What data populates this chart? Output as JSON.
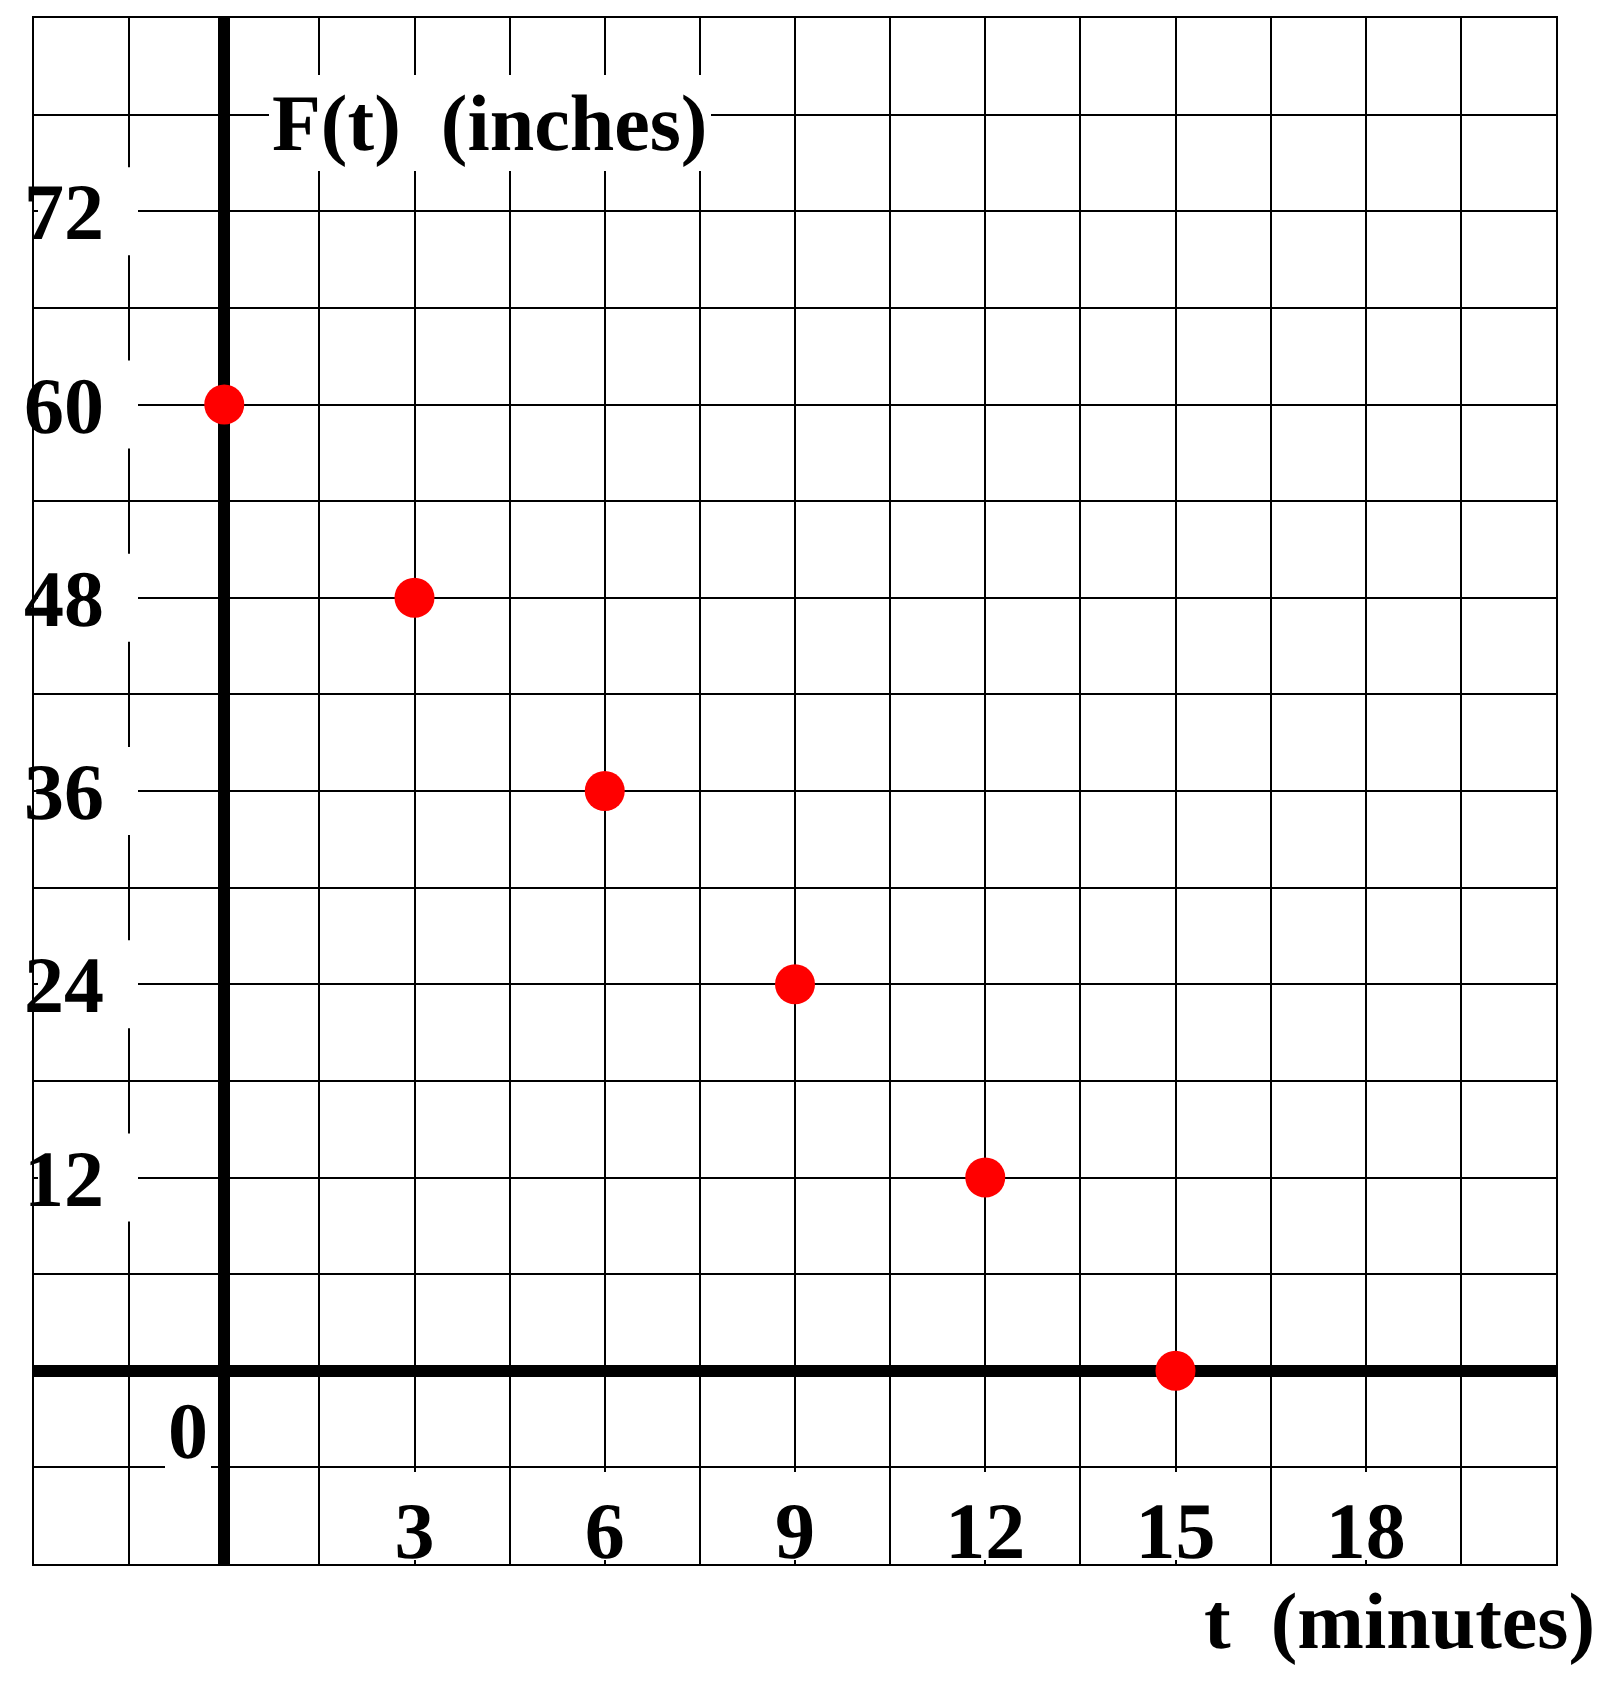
{
  "chart_data": {
    "type": "scatter",
    "xlabel": "t  (minutes)",
    "ylabel": "F(t)  (inches)",
    "x": [
      0,
      3,
      6,
      9,
      12,
      15
    ],
    "values": [
      60,
      48,
      36,
      24,
      12,
      0
    ],
    "color": "#ff0000",
    "marker": "circle",
    "xlim": [
      -3,
      21
    ],
    "ylim": [
      -12,
      84
    ],
    "xticks": [
      {
        "value": -3,
        "label": null
      },
      {
        "value": -1.5,
        "label": null
      },
      {
        "value": 0,
        "label": null
      },
      {
        "value": 1.5,
        "label": null
      },
      3,
      {
        "value": 4.5,
        "label": null
      },
      6,
      {
        "value": 7.5,
        "label": null
      },
      9,
      {
        "value": 10.5,
        "label": null
      },
      12,
      {
        "value": 13.5,
        "label": null
      },
      15,
      {
        "value": 16.5,
        "label": null
      },
      18,
      {
        "value": 19.5,
        "label": null
      },
      {
        "value": 21,
        "label": null
      }
    ],
    "yticks": [
      {
        "value": -12,
        "label": null
      },
      {
        "value": -6,
        "label": null
      },
      {
        "value": 0,
        "label": null
      },
      {
        "value": 6,
        "label": null
      },
      12,
      {
        "value": 18,
        "label": null
      },
      24,
      {
        "value": 30,
        "label": null
      },
      36,
      {
        "value": 42,
        "label": null
      },
      48,
      {
        "value": 54,
        "label": null
      },
      60,
      {
        "value": 66,
        "label": null
      },
      72,
      {
        "value": 78,
        "label": null
      },
      {
        "value": 84,
        "label": null
      }
    ],
    "annotations": [
      "0"
    ],
    "grid": true,
    "legend": false
  }
}
